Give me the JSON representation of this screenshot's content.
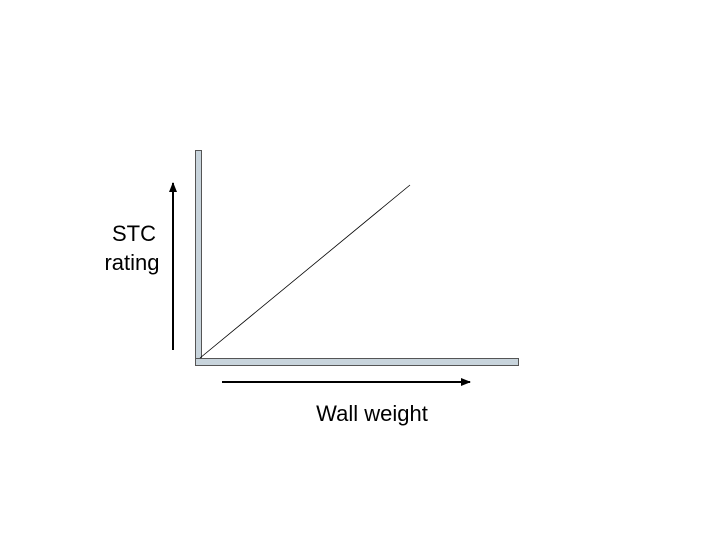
{
  "y_axis_label": [
    "STC",
    "rating"
  ],
  "x_axis_label": "Wall weight"
}
